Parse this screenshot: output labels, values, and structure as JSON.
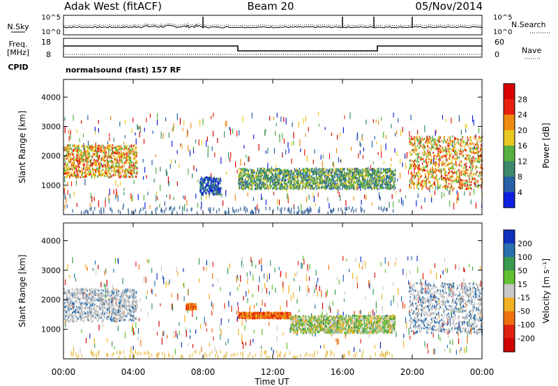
{
  "header": {
    "site": "Adak West (fitACF)",
    "beam": "Beam 20",
    "date": "05/Nov/2014"
  },
  "chart_data": [
    {
      "type": "line",
      "panel": "noise",
      "left_label": "N.Sky",
      "right_label": "N.Search",
      "left_ticks": [
        "10^5",
        "10^0"
      ],
      "right_ticks": [
        "10^5",
        "10^0"
      ],
      "y_scale": "log",
      "spike_times_h": [
        8.0,
        16.0,
        17.8,
        20.0
      ]
    },
    {
      "type": "line",
      "panel": "frequency",
      "left_label_top": "Freq.",
      "left_label_unit": "[MHz]",
      "right_label": "Nave",
      "cpid_label": "CPID",
      "left_ticks": [
        "18",
        "8"
      ],
      "right_ticks": [
        "60",
        "0"
      ],
      "cpid_text": "normalsound (fast) 157 RF",
      "freq_steps": [
        {
          "start_h": 0,
          "end_h": 10,
          "level": "high"
        },
        {
          "start_h": 10,
          "end_h": 18,
          "level": "low"
        },
        {
          "start_h": 18,
          "end_h": 24,
          "level": "high"
        }
      ]
    },
    {
      "type": "heatmap",
      "panel": "power",
      "ylabel": "Slant Range [km]",
      "ylim": [
        0,
        4600
      ],
      "yticks": [
        "1000",
        "2000",
        "3000",
        "4000"
      ],
      "xlim_h": [
        0,
        24
      ],
      "colorbar_label": "Power [dB]",
      "colorbar_ticks": [
        "4",
        "8",
        "12",
        "16",
        "20",
        "24",
        "28"
      ],
      "colorbar_colors": [
        "#1020e0",
        "#2860a8",
        "#3c8a6a",
        "#58b040",
        "#e8c820",
        "#f08a10",
        "#e82010",
        "#d80000"
      ],
      "features": [
        {
          "start_h": 0.0,
          "end_h": 4.2,
          "range_lo": 1300,
          "range_hi": 2400,
          "level": "high"
        },
        {
          "start_h": 7.8,
          "end_h": 9.0,
          "range_lo": 700,
          "range_hi": 1300,
          "level": "low"
        },
        {
          "start_h": 10.0,
          "end_h": 19.0,
          "range_lo": 900,
          "range_hi": 1600,
          "level": "mid"
        },
        {
          "start_h": 19.8,
          "end_h": 24.0,
          "range_lo": 900,
          "range_hi": 2700,
          "level": "high"
        }
      ]
    },
    {
      "type": "heatmap",
      "panel": "velocity",
      "ylabel": "Slant Range [km]",
      "ylim": [
        0,
        4600
      ],
      "yticks": [
        "1000",
        "2000",
        "3000",
        "4000"
      ],
      "xlim_h": [
        0,
        24
      ],
      "colorbar_label": "Velocity [m s⁻¹]",
      "colorbar_ticks": [
        "200",
        "100",
        "50",
        "15",
        "-15",
        "-50",
        "-100",
        "-200"
      ],
      "colorbar_colors": [
        "#1030c0",
        "#2a70b0",
        "#3a9a50",
        "#60c030",
        "#c8c8c8",
        "#f0b020",
        "#f07010",
        "#e02010",
        "#d00000"
      ],
      "features": [
        {
          "start_h": 0.0,
          "end_h": 4.2,
          "range_lo": 1300,
          "range_hi": 2400,
          "level": "ground"
        },
        {
          "start_h": 7.0,
          "end_h": 7.6,
          "range_lo": 1700,
          "range_hi": 1900,
          "level": "negative"
        },
        {
          "start_h": 10.0,
          "end_h": 13.0,
          "range_lo": 1400,
          "range_hi": 1600,
          "level": "negative"
        },
        {
          "start_h": 13.0,
          "end_h": 19.0,
          "range_lo": 900,
          "range_hi": 1500,
          "level": "positive"
        },
        {
          "start_h": 19.8,
          "end_h": 24.0,
          "range_lo": 900,
          "range_hi": 2600,
          "level": "ground"
        }
      ]
    }
  ],
  "xaxis": {
    "ticks": [
      "00:00",
      "04:00",
      "08:00",
      "12:00",
      "16:00",
      "20:00",
      "00:00"
    ],
    "label": "Time UT"
  }
}
